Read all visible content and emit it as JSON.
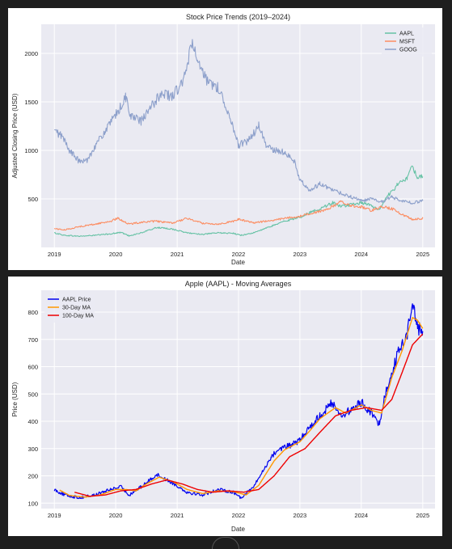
{
  "chart_data": [
    {
      "type": "line",
      "title": "Stock Price Trends (2019–2024)",
      "xlabel": "Date",
      "ylabel": "Adjusted Closing Price (USD)",
      "x_ticks": [
        "2019",
        "2020",
        "2021",
        "2022",
        "2023",
        "2024",
        "2025"
      ],
      "y_ticks": [
        500,
        1000,
        1500,
        2000
      ],
      "xlim": [
        "2018-10-15",
        "2025-03-15"
      ],
      "ylim": [
        0,
        2300
      ],
      "grid": true,
      "legend": "top-right",
      "series": [
        {
          "name": "AAPL",
          "color": "#66c2a5",
          "points": [
            [
              "2019-01-01",
              150
            ],
            [
              "2019-03-01",
              125
            ],
            [
              "2019-06-01",
              115
            ],
            [
              "2019-09-01",
              125
            ],
            [
              "2019-12-01",
              140
            ],
            [
              "2020-02-01",
              155
            ],
            [
              "2020-03-20",
              120
            ],
            [
              "2020-06-01",
              150
            ],
            [
              "2020-09-01",
              205
            ],
            [
              "2020-12-01",
              190
            ],
            [
              "2021-03-01",
              150
            ],
            [
              "2021-06-01",
              135
            ],
            [
              "2021-09-01",
              150
            ],
            [
              "2021-12-01",
              145
            ],
            [
              "2022-01-15",
              125
            ],
            [
              "2022-04-01",
              150
            ],
            [
              "2022-08-01",
              230
            ],
            [
              "2022-10-01",
              270
            ],
            [
              "2023-01-01",
              310
            ],
            [
              "2023-03-01",
              360
            ],
            [
              "2023-05-01",
              400
            ],
            [
              "2023-07-15",
              460
            ],
            [
              "2023-09-01",
              420
            ],
            [
              "2023-11-01",
              440
            ],
            [
              "2024-01-01",
              460
            ],
            [
              "2024-03-01",
              430
            ],
            [
              "2024-04-15",
              390
            ],
            [
              "2024-06-01",
              520
            ],
            [
              "2024-08-01",
              640
            ],
            [
              "2024-10-01",
              720
            ],
            [
              "2024-11-01",
              840
            ],
            [
              "2024-12-01",
              720
            ],
            [
              "2025-01-01",
              730
            ]
          ]
        },
        {
          "name": "MSFT",
          "color": "#fc8d62",
          "points": [
            [
              "2019-01-01",
              195
            ],
            [
              "2019-03-01",
              180
            ],
            [
              "2019-06-01",
              215
            ],
            [
              "2019-09-01",
              240
            ],
            [
              "2019-12-01",
              270
            ],
            [
              "2020-01-15",
              300
            ],
            [
              "2020-03-20",
              240
            ],
            [
              "2020-06-01",
              260
            ],
            [
              "2020-09-01",
              270
            ],
            [
              "2020-12-01",
              250
            ],
            [
              "2021-03-01",
              300
            ],
            [
              "2021-06-01",
              250
            ],
            [
              "2021-09-01",
              240
            ],
            [
              "2021-12-01",
              270
            ],
            [
              "2022-01-01",
              290
            ],
            [
              "2022-04-01",
              255
            ],
            [
              "2022-08-01",
              280
            ],
            [
              "2022-10-01",
              300
            ],
            [
              "2023-01-01",
              320
            ],
            [
              "2023-03-01",
              350
            ],
            [
              "2023-06-01",
              380
            ],
            [
              "2023-09-01",
              470
            ],
            [
              "2023-11-01",
              430
            ],
            [
              "2024-01-01",
              420
            ],
            [
              "2024-03-01",
              380
            ],
            [
              "2024-05-01",
              420
            ],
            [
              "2024-07-01",
              400
            ],
            [
              "2024-09-01",
              340
            ],
            [
              "2024-11-01",
              290
            ],
            [
              "2025-01-01",
              300
            ]
          ]
        },
        {
          "name": "GOOG",
          "color": "#8da0cb",
          "points": [
            [
              "2019-01-01",
              1200
            ],
            [
              "2019-02-15",
              1150
            ],
            [
              "2019-04-01",
              1000
            ],
            [
              "2019-06-01",
              880
            ],
            [
              "2019-07-15",
              900
            ],
            [
              "2019-09-01",
              1050
            ],
            [
              "2019-11-01",
              1200
            ],
            [
              "2019-12-15",
              1320
            ],
            [
              "2020-02-01",
              1450
            ],
            [
              "2020-03-01",
              1550
            ],
            [
              "2020-04-01",
              1350
            ],
            [
              "2020-06-01",
              1300
            ],
            [
              "2020-08-01",
              1450
            ],
            [
              "2020-10-01",
              1600
            ],
            [
              "2020-12-01",
              1550
            ],
            [
              "2021-02-01",
              1700
            ],
            [
              "2021-03-01",
              1850
            ],
            [
              "2021-04-01",
              2150
            ],
            [
              "2021-05-01",
              1900
            ],
            [
              "2021-07-01",
              1700
            ],
            [
              "2021-09-01",
              1650
            ],
            [
              "2021-11-01",
              1400
            ],
            [
              "2022-01-01",
              1050
            ],
            [
              "2022-03-01",
              1100
            ],
            [
              "2022-05-01",
              1250
            ],
            [
              "2022-06-15",
              1050
            ],
            [
              "2022-08-01",
              1000
            ],
            [
              "2022-10-01",
              980
            ],
            [
              "2022-12-01",
              880
            ],
            [
              "2023-01-01",
              700
            ],
            [
              "2023-03-01",
              580
            ],
            [
              "2023-05-01",
              660
            ],
            [
              "2023-07-01",
              600
            ],
            [
              "2023-09-01",
              560
            ],
            [
              "2023-11-01",
              520
            ],
            [
              "2024-01-01",
              480
            ],
            [
              "2024-03-01",
              500
            ],
            [
              "2024-05-01",
              470
            ],
            [
              "2024-07-01",
              520
            ],
            [
              "2024-09-01",
              480
            ],
            [
              "2024-11-01",
              460
            ],
            [
              "2025-01-01",
              480
            ]
          ]
        }
      ]
    },
    {
      "type": "line",
      "title": "Apple (AAPL) - Moving Averages",
      "xlabel": "Date",
      "ylabel": "Price (USD)",
      "x_ticks": [
        "2019",
        "2020",
        "2021",
        "2022",
        "2023",
        "2024",
        "2025"
      ],
      "y_ticks": [
        100,
        200,
        300,
        400,
        500,
        600,
        700,
        800
      ],
      "xlim": [
        "2018-10-15",
        "2025-03-15"
      ],
      "ylim": [
        80,
        880
      ],
      "grid": true,
      "legend": "top-left",
      "series": [
        {
          "name": "AAPL Price",
          "color": "#0000ee",
          "points": [
            [
              "2019-01-01",
              150
            ],
            [
              "2019-03-01",
              130
            ],
            [
              "2019-06-01",
              120
            ],
            [
              "2019-09-01",
              130
            ],
            [
              "2019-12-01",
              150
            ],
            [
              "2020-02-01",
              160
            ],
            [
              "2020-03-20",
              130
            ],
            [
              "2020-06-01",
              160
            ],
            [
              "2020-09-01",
              205
            ],
            [
              "2020-12-01",
              175
            ],
            [
              "2021-03-01",
              140
            ],
            [
              "2021-06-01",
              130
            ],
            [
              "2021-09-01",
              150
            ],
            [
              "2021-12-01",
              140
            ],
            [
              "2022-01-15",
              120
            ],
            [
              "2022-04-01",
              160
            ],
            [
              "2022-07-15",
              270
            ],
            [
              "2022-09-01",
              300
            ],
            [
              "2022-11-01",
              310
            ],
            [
              "2023-01-01",
              330
            ],
            [
              "2023-03-01",
              380
            ],
            [
              "2023-05-01",
              420
            ],
            [
              "2023-07-15",
              470
            ],
            [
              "2023-09-01",
              420
            ],
            [
              "2023-11-01",
              440
            ],
            [
              "2024-01-01",
              470
            ],
            [
              "2024-03-01",
              430
            ],
            [
              "2024-04-15",
              390
            ],
            [
              "2024-06-01",
              520
            ],
            [
              "2024-08-01",
              640
            ],
            [
              "2024-10-01",
              720
            ],
            [
              "2024-11-01",
              850
            ],
            [
              "2024-12-01",
              740
            ],
            [
              "2025-01-01",
              730
            ]
          ]
        },
        {
          "name": "30-Day MA",
          "color": "#ff9900",
          "points": [
            [
              "2019-02-01",
              148
            ],
            [
              "2019-04-01",
              128
            ],
            [
              "2019-07-01",
              122
            ],
            [
              "2019-10-01",
              130
            ],
            [
              "2020-01-01",
              150
            ],
            [
              "2020-03-01",
              150
            ],
            [
              "2020-05-01",
              145
            ],
            [
              "2020-07-01",
              170
            ],
            [
              "2020-09-15",
              195
            ],
            [
              "2020-12-01",
              180
            ],
            [
              "2021-03-01",
              150
            ],
            [
              "2021-06-01",
              135
            ],
            [
              "2021-09-01",
              145
            ],
            [
              "2021-12-01",
              142
            ],
            [
              "2022-02-15",
              130
            ],
            [
              "2022-05-01",
              165
            ],
            [
              "2022-08-01",
              255
            ],
            [
              "2022-10-01",
              295
            ],
            [
              "2023-01-01",
              325
            ],
            [
              "2023-03-01",
              365
            ],
            [
              "2023-05-01",
              410
            ],
            [
              "2023-08-01",
              450
            ],
            [
              "2023-10-01",
              430
            ],
            [
              "2024-01-01",
              460
            ],
            [
              "2024-03-01",
              440
            ],
            [
              "2024-05-01",
              430
            ],
            [
              "2024-07-01",
              560
            ],
            [
              "2024-09-01",
              660
            ],
            [
              "2024-11-01",
              780
            ],
            [
              "2024-12-01",
              770
            ],
            [
              "2025-01-01",
              740
            ]
          ]
        },
        {
          "name": "100-Day MA",
          "color": "#ee0000",
          "points": [
            [
              "2019-05-01",
              140
            ],
            [
              "2019-08-01",
              125
            ],
            [
              "2019-11-01",
              130
            ],
            [
              "2020-02-01",
              145
            ],
            [
              "2020-05-01",
              150
            ],
            [
              "2020-08-01",
              170
            ],
            [
              "2020-11-01",
              185
            ],
            [
              "2021-02-01",
              170
            ],
            [
              "2021-05-01",
              150
            ],
            [
              "2021-08-01",
              140
            ],
            [
              "2021-11-01",
              145
            ],
            [
              "2022-02-01",
              140
            ],
            [
              "2022-05-01",
              150
            ],
            [
              "2022-08-01",
              200
            ],
            [
              "2022-11-01",
              270
            ],
            [
              "2023-02-01",
              300
            ],
            [
              "2023-05-01",
              360
            ],
            [
              "2023-08-01",
              420
            ],
            [
              "2023-11-01",
              440
            ],
            [
              "2024-02-01",
              450
            ],
            [
              "2024-05-01",
              440
            ],
            [
              "2024-07-01",
              480
            ],
            [
              "2024-09-01",
              580
            ],
            [
              "2024-11-01",
              680
            ],
            [
              "2025-01-01",
              720
            ]
          ]
        }
      ]
    }
  ]
}
